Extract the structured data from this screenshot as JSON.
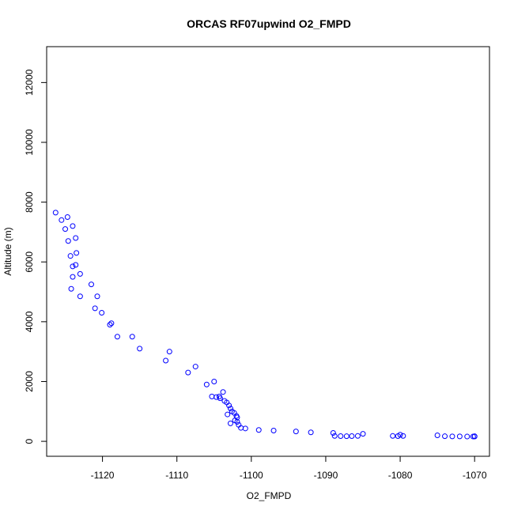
{
  "chart_data": {
    "type": "scatter",
    "title": "ORCAS RF07upwind O2_FMPD",
    "xlabel": "O2_FMPD",
    "ylabel": "Altitude (m)",
    "xlim": [
      -1127.5,
      -1068
    ],
    "ylim": [
      -500,
      13200
    ],
    "xticks": [
      -1120,
      -1110,
      -1100,
      -1090,
      -1080,
      -1070
    ],
    "yticks": [
      0,
      2000,
      4000,
      6000,
      8000,
      10000,
      12000
    ],
    "xtick_labels": [
      "-1120",
      "-1110",
      "-1100",
      "-1090",
      "-1080",
      "-1070"
    ],
    "ytick_labels": [
      "0",
      "2000",
      "4000",
      "6000",
      "8000",
      "10000",
      "12000"
    ],
    "grid": false,
    "marker": "open-circle",
    "colors": {
      "points": "#0000ff",
      "axes": "#000000"
    },
    "series": [
      {
        "values": [
          {
            "x": -1126.3,
            "y": 7650
          },
          {
            "x": -1125.5,
            "y": 7400
          },
          {
            "x": -1125.0,
            "y": 7100
          },
          {
            "x": -1124.6,
            "y": 6700
          },
          {
            "x": -1124.3,
            "y": 6200
          },
          {
            "x": -1124.0,
            "y": 5850
          },
          {
            "x": -1123.0,
            "y": 5600
          },
          {
            "x": -1121.5,
            "y": 5250
          },
          {
            "x": -1120.7,
            "y": 4850
          },
          {
            "x": -1120.1,
            "y": 4300
          },
          {
            "x": -1119.0,
            "y": 3900
          },
          {
            "x": -1116.0,
            "y": 3500
          },
          {
            "x": -1111.0,
            "y": 3000
          },
          {
            "x": -1107.5,
            "y": 2500
          },
          {
            "x": -1105.0,
            "y": 2000
          },
          {
            "x": -1103.8,
            "y": 1650
          },
          {
            "x": -1103.3,
            "y": 1300
          },
          {
            "x": -1102.3,
            "y": 950
          },
          {
            "x": -1101.9,
            "y": 650
          },
          {
            "x": -1101.4,
            "y": 450
          },
          {
            "x": -1099.0,
            "y": 380
          },
          {
            "x": -1094.0,
            "y": 330
          },
          {
            "x": -1089.0,
            "y": 280
          },
          {
            "x": -1080.0,
            "y": 220
          },
          {
            "x": -1070.0,
            "y": 170
          }
        ]
      },
      {
        "values": [
          {
            "x": -1124.7,
            "y": 7500
          },
          {
            "x": -1124.0,
            "y": 7200
          },
          {
            "x": -1123.6,
            "y": 6800
          },
          {
            "x": -1123.5,
            "y": 6300
          },
          {
            "x": -1123.6,
            "y": 5900
          },
          {
            "x": -1124.0,
            "y": 5500
          },
          {
            "x": -1124.2,
            "y": 5100
          },
          {
            "x": -1123.0,
            "y": 4850
          },
          {
            "x": -1121.0,
            "y": 4450
          },
          {
            "x": -1118.8,
            "y": 3950
          },
          {
            "x": -1118.0,
            "y": 3500
          },
          {
            "x": -1115.0,
            "y": 3100
          },
          {
            "x": -1111.5,
            "y": 2700
          },
          {
            "x": -1108.5,
            "y": 2300
          },
          {
            "x": -1106.0,
            "y": 1900
          },
          {
            "x": -1104.3,
            "y": 1500
          },
          {
            "x": -1102.8,
            "y": 1100
          },
          {
            "x": -1102.0,
            "y": 850
          },
          {
            "x": -1101.7,
            "y": 550
          },
          {
            "x": -1100.8,
            "y": 430
          },
          {
            "x": -1097.0,
            "y": 360
          },
          {
            "x": -1092.0,
            "y": 300
          },
          {
            "x": -1085.0,
            "y": 250
          },
          {
            "x": -1075.0,
            "y": 200
          },
          {
            "x": -1070.0,
            "y": 160
          }
        ]
      },
      {
        "values": [
          {
            "x": -1105.3,
            "y": 1500
          },
          {
            "x": -1104.7,
            "y": 1480
          },
          {
            "x": -1104.2,
            "y": 1440
          },
          {
            "x": -1103.6,
            "y": 1350
          },
          {
            "x": -1103.0,
            "y": 1200
          },
          {
            "x": -1102.6,
            "y": 1000
          },
          {
            "x": -1103.2,
            "y": 900
          },
          {
            "x": -1102.2,
            "y": 700
          },
          {
            "x": -1102.8,
            "y": 600
          },
          {
            "x": -1101.9,
            "y": 800
          },
          {
            "x": -1088.8,
            "y": 180
          },
          {
            "x": -1088.0,
            "y": 175
          },
          {
            "x": -1087.2,
            "y": 170
          },
          {
            "x": -1086.5,
            "y": 175
          },
          {
            "x": -1085.7,
            "y": 180
          },
          {
            "x": -1081.0,
            "y": 180
          },
          {
            "x": -1080.3,
            "y": 175
          },
          {
            "x": -1079.6,
            "y": 180
          },
          {
            "x": -1074.0,
            "y": 170
          },
          {
            "x": -1073.0,
            "y": 165
          },
          {
            "x": -1072.0,
            "y": 165
          },
          {
            "x": -1071.0,
            "y": 160
          },
          {
            "x": -1070.2,
            "y": 160
          }
        ]
      }
    ]
  }
}
